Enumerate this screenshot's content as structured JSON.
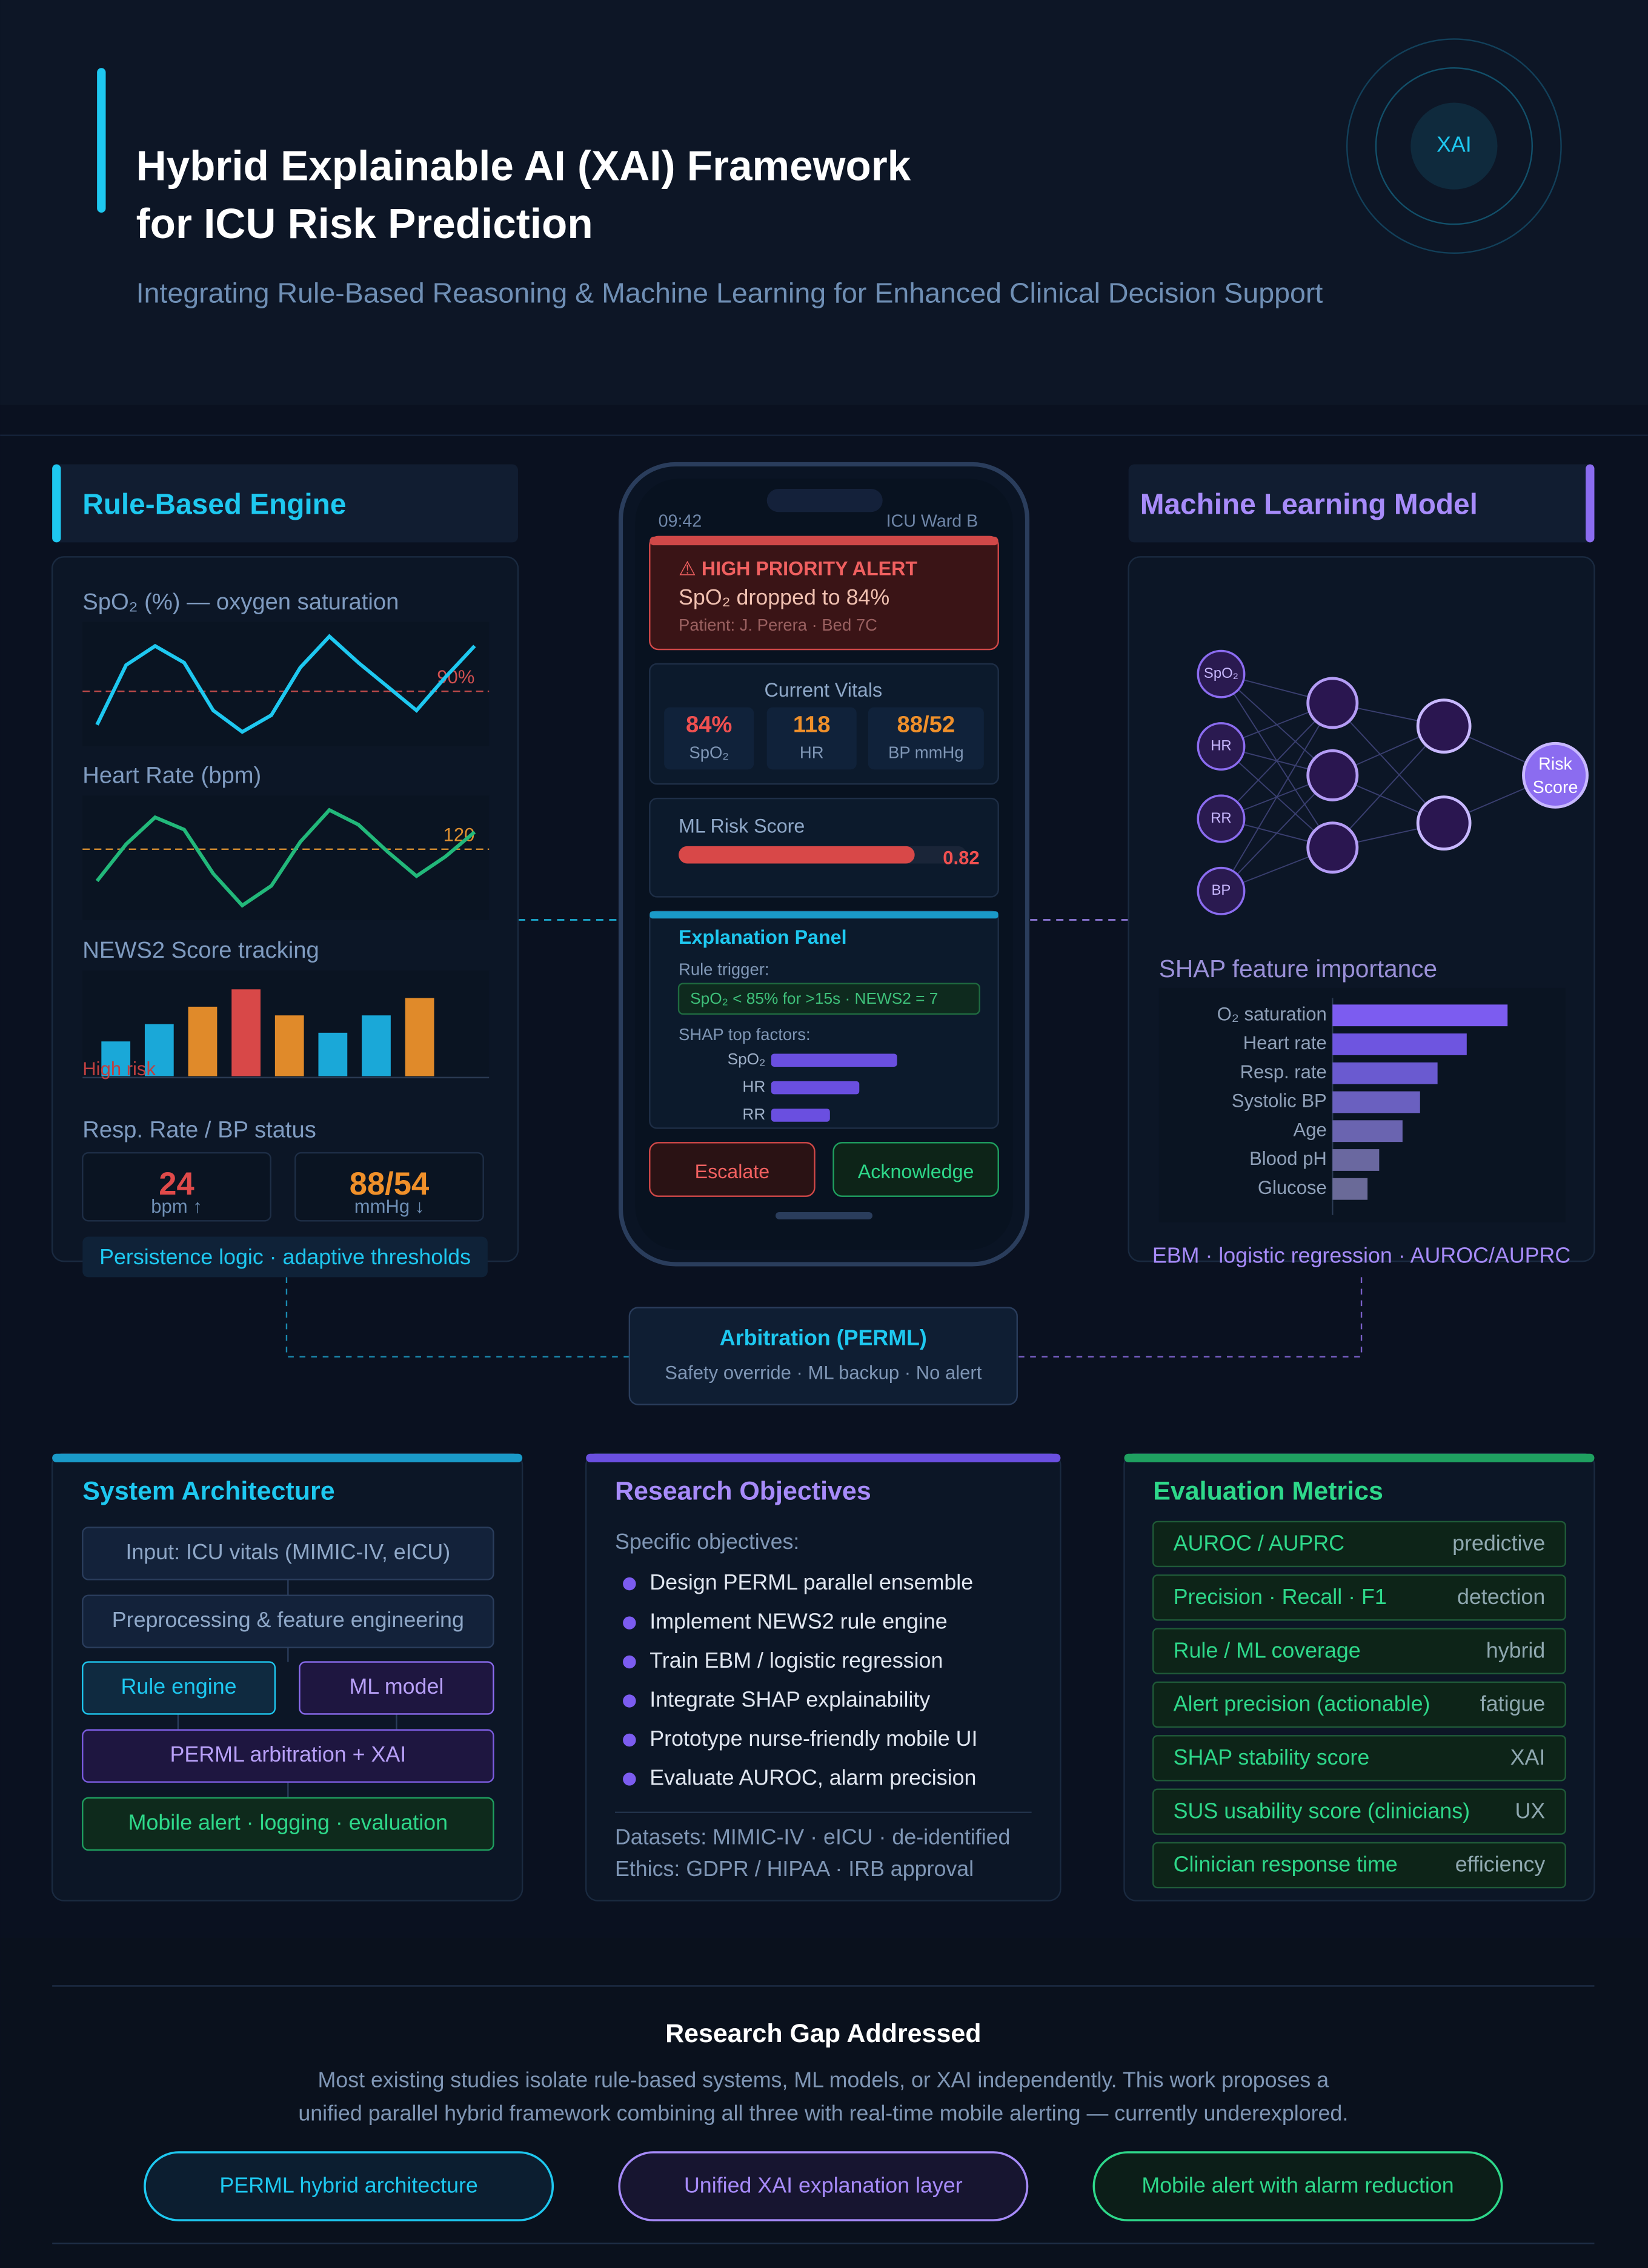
{
  "header": {
    "title": [
      "Hybrid Explainable AI (XAI) Framework",
      "for ICU Risk Prediction"
    ],
    "subtitle": "Integrating Rule-Based Reasoning & Machine Learning for Enhanced Clinical Decision Support",
    "badge": "XAI"
  },
  "rule_engine": {
    "title": "Rule-Based Engine",
    "spo2": {
      "label": "SpO₂ (%) — oxygen saturation",
      "threshold": {
        "value": 90,
        "label": "90%"
      },
      "color": "#1ec8f0",
      "values": [
        87.2,
        92.2,
        93.8,
        92.4,
        88.4,
        86.6,
        88,
        92,
        94.6,
        92.4,
        90.4,
        88.4,
        91.2,
        93.8
      ]
    },
    "heart_rate": {
      "label": "Heart Rate (bpm)",
      "threshold": 120,
      "color": "#22b87a",
      "values": [
        107,
        122,
        133,
        128,
        110,
        97,
        105,
        123,
        136,
        130,
        119,
        109,
        117,
        127
      ]
    },
    "news2": {
      "label": "NEWS2 Score tracking",
      "threshold_label": "High risk",
      "values": [
        4,
        6,
        8,
        10,
        7,
        5,
        7,
        9
      ],
      "colors": [
        "#1aa8d8",
        "#1aa8d8",
        "#e08a2a",
        "#d84848",
        "#e08a2a",
        "#1aa8d8",
        "#1aa8d8",
        "#e08a2a"
      ]
    },
    "status": {
      "label": "Resp. Rate / BP status",
      "cards": [
        {
          "value": "24",
          "unit": "bpm ↑",
          "color": "#e04a4a"
        },
        {
          "value": "88/54",
          "unit": "mmHg ↓",
          "color": "#f0902a"
        }
      ]
    },
    "footer": "Persistence logic · adaptive thresholds"
  },
  "phone": {
    "time": "09:42",
    "location": "ICU Ward B",
    "alert": {
      "title": "⚠ HIGH PRIORITY ALERT",
      "message": "SpO₂ dropped to 84%",
      "patient": "Patient: J. Perera · Bed 7C"
    },
    "vitals": {
      "title": "Current Vitals",
      "items": [
        {
          "value": "84%",
          "label": "SpO₂",
          "color": "#f05050"
        },
        {
          "value": "118",
          "label": "HR",
          "color": "#f0902a"
        },
        {
          "value": "88/52",
          "label": "BP mmHg",
          "color": "#f0902a"
        }
      ]
    },
    "risk": {
      "title": "ML Risk Score",
      "value": 0.82
    },
    "explanation": {
      "title": "Explanation Panel",
      "rule_label": "Rule trigger:",
      "rule": "SpO₂ < 85% for >15s · NEWS2 = 7",
      "shap_label": "SHAP top factors:",
      "factors": [
        {
          "name": "SpO₂",
          "value": 0.3
        },
        {
          "name": "HR",
          "value": 0.21
        },
        {
          "name": "RR",
          "value": 0.14
        }
      ]
    },
    "buttons": [
      "Escalate",
      "Acknowledge"
    ]
  },
  "ml": {
    "title": "Machine Learning Model",
    "network": {
      "inputs": [
        "SpO₂",
        "HR",
        "RR",
        "BP"
      ],
      "output": [
        "Risk",
        "Score"
      ]
    },
    "shap": {
      "title": "SHAP feature importance",
      "features": [
        {
          "name": "O₂ saturation",
          "value": 0.3,
          "color": "#7c5cf0"
        },
        {
          "name": "Heart rate",
          "value": 0.23,
          "color": "#6e55e0"
        },
        {
          "name": "Resp. rate",
          "value": 0.18,
          "color": "#6a5ad0"
        },
        {
          "name": "Systolic BP",
          "value": 0.15,
          "color": "#6a60c0"
        },
        {
          "name": "Age",
          "value": 0.12,
          "color": "#6a64b0"
        },
        {
          "name": "Blood pH",
          "value": 0.08,
          "color": "#6a68a0"
        },
        {
          "name": "Glucose",
          "value": 0.06,
          "color": "#6a6a98"
        }
      ]
    },
    "footer": "EBM · logistic regression · AUROC/AUPRC"
  },
  "arbitration": {
    "title": "Arbitration (PERML)",
    "subtitle": "Safety override · ML backup · No alert"
  },
  "architecture": {
    "title": "System Architecture",
    "steps": [
      "Input: ICU vitals (MIMIC-IV, eICU)",
      "Preprocessing & feature engineering",
      "Rule engine",
      "ML model",
      "PERML arbitration + XAI",
      "Mobile alert · logging · evaluation"
    ]
  },
  "objectives": {
    "title": "Research Objectives",
    "intro": "Specific objectives:",
    "items": [
      "Design PERML parallel ensemble",
      "Implement NEWS2 rule engine",
      "Train EBM / logistic regression",
      "Integrate SHAP explainability",
      "Prototype nurse-friendly mobile UI",
      "Evaluate AUROC, alarm precision"
    ],
    "notes": [
      "Datasets: MIMIC-IV · eICU · de-identified",
      "Ethics: GDPR / HIPAA · IRB approval"
    ]
  },
  "metrics": {
    "title": "Evaluation Metrics",
    "rows": [
      {
        "name": "AUROC / AUPRC",
        "tag": "predictive"
      },
      {
        "name": "Precision · Recall · F1",
        "tag": "detection"
      },
      {
        "name": "Rule / ML coverage",
        "tag": "hybrid"
      },
      {
        "name": "Alert precision (actionable)",
        "tag": "fatigue"
      },
      {
        "name": "SHAP stability score",
        "tag": "XAI"
      },
      {
        "name": "SUS usability score (clinicians)",
        "tag": "UX"
      },
      {
        "name": "Clinician response time",
        "tag": "efficiency"
      }
    ]
  },
  "gap": {
    "title": "Research Gap Addressed",
    "text": [
      "Most existing studies isolate rule-based systems, ML models, or XAI independently. This work proposes a",
      "unified parallel hybrid framework combining all three with real-time mobile alerting — currently underexplored."
    ],
    "pills": [
      "PERML hybrid architecture",
      "Unified XAI explanation layer",
      "Mobile alert with alarm reduction"
    ]
  }
}
